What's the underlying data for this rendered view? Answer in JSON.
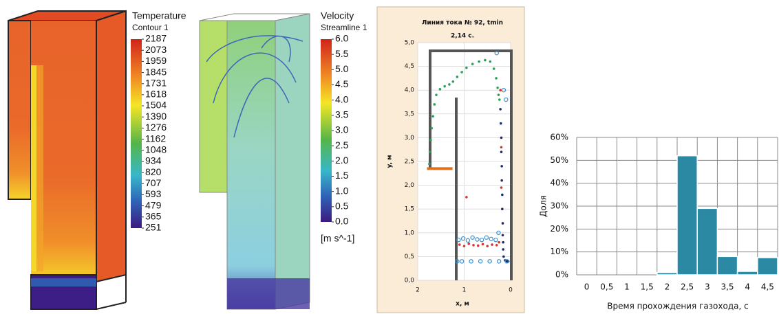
{
  "chart_data": [
    {
      "type": "colorbar",
      "title": "Temperature",
      "subtitle": "Contour 1",
      "ticks": [
        2187,
        2073,
        1959,
        1845,
        1731,
        1618,
        1504,
        1390,
        1276,
        1162,
        1048,
        934,
        820,
        707,
        593,
        479,
        365,
        251
      ]
    },
    {
      "type": "colorbar",
      "title": "Velocity",
      "subtitle": "Streamline 1",
      "unit": "[m s^-1]",
      "ticks": [
        {
          "value": 6,
          "label": "6.0"
        },
        {
          "value": 5.5,
          "label": "5.5"
        },
        {
          "value": 5,
          "label": "5.0"
        },
        {
          "value": 4.5,
          "label": "4.5"
        },
        {
          "value": 4,
          "label": "4.0"
        },
        {
          "value": 3.5,
          "label": "3.5"
        },
        {
          "value": 3,
          "label": "3.0"
        },
        {
          "value": 2.5,
          "label": "2.5"
        },
        {
          "value": 2,
          "label": "2.0"
        },
        {
          "value": 1.5,
          "label": "1.5"
        },
        {
          "value": 1,
          "label": "1.0"
        },
        {
          "value": 0.5,
          "label": "0.5"
        },
        {
          "value": 0,
          "label": "0.0"
        }
      ]
    },
    {
      "type": "scatter",
      "title": "Линия тока № 92, tmin",
      "subtitle": "2,14 с.",
      "xlabel": "x, м",
      "ylabel": "y, м",
      "xlim": [
        2,
        0
      ],
      "xticks": [
        2,
        1,
        0
      ],
      "ylim": [
        0,
        5
      ],
      "yticks": [
        {
          "value": 0,
          "label": "0,0"
        },
        {
          "value": 0.5,
          "label": "0,5"
        },
        {
          "value": 1,
          "label": "1,0"
        },
        {
          "value": 1.5,
          "label": "1,5"
        },
        {
          "value": 2,
          "label": "2,0"
        },
        {
          "value": 2.5,
          "label": "2,5"
        },
        {
          "value": 3,
          "label": "3,0"
        },
        {
          "value": 3.5,
          "label": "3,5"
        },
        {
          "value": 4,
          "label": "4,0"
        },
        {
          "value": 4.5,
          "label": "4,5"
        },
        {
          "value": 5,
          "label": "5,0"
        }
      ],
      "series": [
        {
          "color": "#e07020",
          "marker": "line",
          "x": [
            1.8,
            1.25
          ],
          "y": [
            2.35,
            2.35
          ]
        },
        {
          "color": "#2ca05a",
          "marker": "dot",
          "x": [
            1.75,
            1.74,
            1.72,
            1.7,
            1.67,
            1.64,
            1.6,
            1.52,
            1.42,
            1.32,
            1.24,
            1.15,
            1.05,
            0.95,
            0.82,
            0.68,
            0.55,
            0.44,
            0.36,
            0.31,
            0.28,
            0.26,
            0.24
          ],
          "y": [
            2.45,
            2.7,
            2.95,
            3.2,
            3.45,
            3.7,
            3.9,
            4.02,
            4.08,
            4.12,
            4.18,
            4.28,
            4.38,
            4.47,
            4.55,
            4.6,
            4.63,
            4.6,
            4.45,
            4.25,
            4.05,
            3.9,
            3.8
          ]
        },
        {
          "color": "#1c2a6b",
          "marker": "dot",
          "x": [
            0.22,
            0.21,
            0.2,
            0.2,
            0.19,
            0.19,
            0.18,
            0.18,
            0.17,
            0.17,
            0.16,
            0.16,
            0.15,
            0.12,
            0.08,
            0.05
          ],
          "y": [
            3.6,
            3.3,
            3.0,
            2.7,
            2.4,
            2.1,
            1.8,
            1.5,
            1.2,
            0.95,
            0.8,
            0.65,
            0.5,
            0.42,
            0.4,
            0.4
          ]
        },
        {
          "color": "#d9342b",
          "marker": "dot",
          "x": [
            1.1,
            1.0,
            0.9,
            0.8,
            0.7,
            0.6,
            0.5,
            0.4,
            0.3,
            0.25,
            0.2,
            0.22,
            0.2,
            0.95
          ],
          "y": [
            0.75,
            0.72,
            0.77,
            0.74,
            0.73,
            0.76,
            0.72,
            0.75,
            0.74,
            0.8,
            2.8,
            4.0,
            1.95,
            1.75
          ]
        },
        {
          "color": "#3a8fd0",
          "marker": "ring",
          "x": [
            1.12,
            1.02,
            0.92,
            0.82,
            0.72,
            0.62,
            0.52,
            0.42,
            0.32,
            0.26,
            1.15,
            1.05,
            0.85,
            0.65,
            0.45,
            0.25,
            0.08,
            0.3,
            0.1,
            0.15
          ],
          "y": [
            0.85,
            0.88,
            0.84,
            0.9,
            0.86,
            0.85,
            0.9,
            0.87,
            0.85,
            1.0,
            0.4,
            0.4,
            0.4,
            0.4,
            0.4,
            0.4,
            0.4,
            4.78,
            3.8,
            4.0
          ]
        }
      ]
    },
    {
      "type": "bar",
      "xlabel": "Время прохождения газохода, с",
      "ylabel": "Доля",
      "color": "#2b89a3",
      "categories": [
        "0",
        "0,5",
        "1",
        "1,5",
        "2",
        "2,5",
        "3",
        "3,5",
        "4",
        "4,5"
      ],
      "values": [
        0,
        0,
        0,
        0,
        1,
        52,
        29,
        8,
        1.5,
        7.5
      ],
      "ylim": [
        0,
        60
      ],
      "yticks": [
        {
          "value": 0,
          "label": "0%"
        },
        {
          "value": 10,
          "label": "10%"
        },
        {
          "value": 20,
          "label": "20%"
        },
        {
          "value": 30,
          "label": "30%"
        },
        {
          "value": 40,
          "label": "40%"
        },
        {
          "value": 50,
          "label": "50%"
        },
        {
          "value": 60,
          "label": "60%"
        }
      ],
      "grid": true
    }
  ]
}
